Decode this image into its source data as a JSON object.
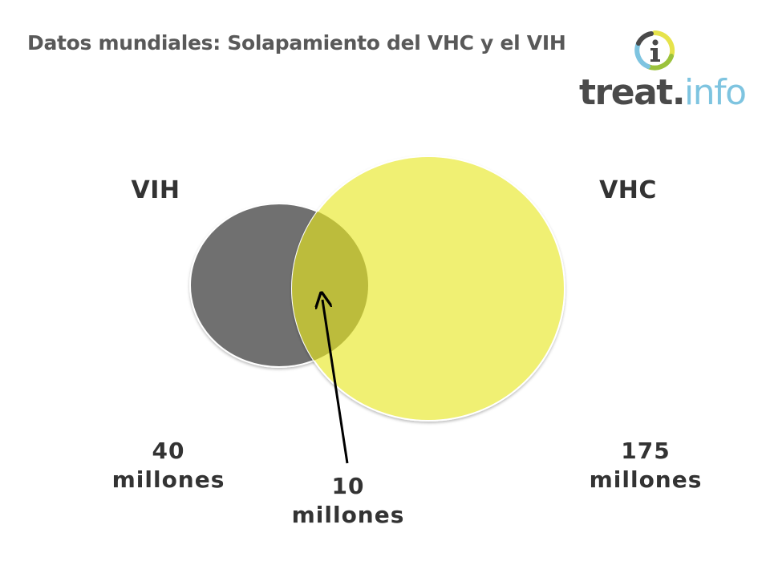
{
  "slide": {
    "title": "Datos mundiales: Solapamiento del VHC y el VIH"
  },
  "logo": {
    "main": "treat",
    "dot": ".",
    "sub": "info"
  },
  "venn": {
    "sets": [
      {
        "key": "hiv",
        "name": "VIH",
        "count_line1": "40",
        "count_line2": "millones",
        "color": "#707070"
      },
      {
        "key": "hcv",
        "name": "VHC",
        "count_line1": "175",
        "count_line2": "millones",
        "color": "#f0f073"
      }
    ],
    "overlap": {
      "count_line1": "10",
      "count_line2": "millones",
      "color": "#bcbc3c"
    }
  },
  "colors": {
    "title": "#595959",
    "label_text": "#333333",
    "logo_ring_yellow": "#e6e34b",
    "logo_ring_green": "#9bc23c",
    "logo_ring_blue": "#7ec4e0",
    "logo_ring_dark": "#4a4a4a"
  },
  "icons": {
    "logo_mark": "info-i-ring-icon",
    "pointer": "arrow-up-icon"
  }
}
